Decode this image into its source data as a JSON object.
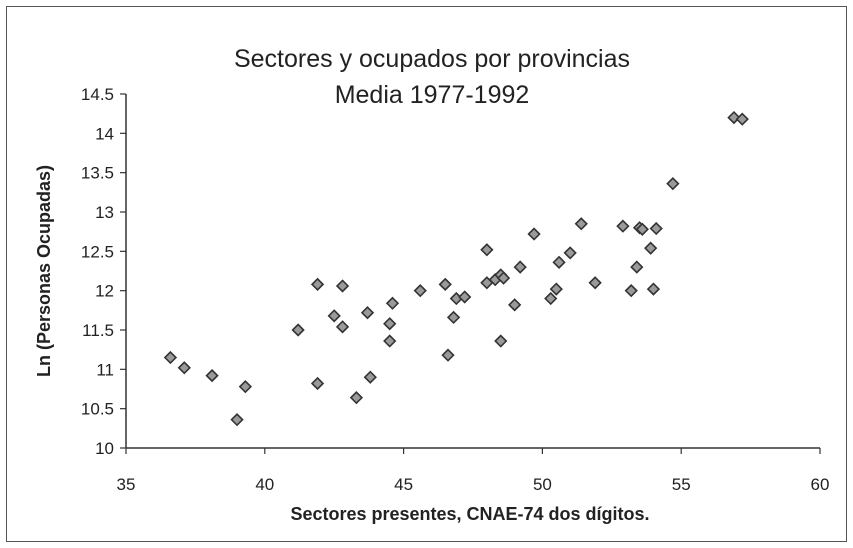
{
  "chart_data": {
    "type": "scatter",
    "title": "Sectores y ocupados por provincias",
    "subtitle": "Media 1977-1992",
    "xlabel": "Sectores presentes, CNAE-74 dos dígitos.",
    "ylabel": "Ln (Personas Ocupadas)",
    "xlim": [
      35,
      60
    ],
    "ylim": [
      10,
      14.5
    ],
    "x_ticks": [
      "35",
      "40",
      "45",
      "50",
      "55",
      "60"
    ],
    "y_ticks": [
      "10",
      "10.5",
      "11",
      "11.5",
      "12",
      "12.5",
      "13",
      "13.5",
      "14",
      "14.5"
    ],
    "grid": false,
    "legend": "none",
    "marker_color": "#333333",
    "points": [
      {
        "x": 36.6,
        "y": 11.15
      },
      {
        "x": 37.1,
        "y": 11.02
      },
      {
        "x": 38.1,
        "y": 10.92
      },
      {
        "x": 39.0,
        "y": 10.36
      },
      {
        "x": 39.3,
        "y": 10.78
      },
      {
        "x": 41.2,
        "y": 11.5
      },
      {
        "x": 41.9,
        "y": 12.08
      },
      {
        "x": 41.9,
        "y": 10.82
      },
      {
        "x": 42.5,
        "y": 11.68
      },
      {
        "x": 42.8,
        "y": 11.54
      },
      {
        "x": 42.8,
        "y": 12.06
      },
      {
        "x": 43.3,
        "y": 10.64
      },
      {
        "x": 43.7,
        "y": 11.72
      },
      {
        "x": 43.8,
        "y": 10.9
      },
      {
        "x": 44.5,
        "y": 11.58
      },
      {
        "x": 44.5,
        "y": 11.36
      },
      {
        "x": 44.6,
        "y": 11.84
      },
      {
        "x": 45.6,
        "y": 12.0
      },
      {
        "x": 46.5,
        "y": 12.08
      },
      {
        "x": 46.6,
        "y": 11.18
      },
      {
        "x": 46.8,
        "y": 11.66
      },
      {
        "x": 46.9,
        "y": 11.9
      },
      {
        "x": 47.2,
        "y": 11.92
      },
      {
        "x": 48.0,
        "y": 12.52
      },
      {
        "x": 48.0,
        "y": 12.1
      },
      {
        "x": 48.3,
        "y": 12.14
      },
      {
        "x": 48.5,
        "y": 12.2
      },
      {
        "x": 48.6,
        "y": 12.16
      },
      {
        "x": 48.5,
        "y": 11.36
      },
      {
        "x": 49.0,
        "y": 11.82
      },
      {
        "x": 49.2,
        "y": 12.3
      },
      {
        "x": 49.7,
        "y": 12.72
      },
      {
        "x": 50.3,
        "y": 11.9
      },
      {
        "x": 50.5,
        "y": 12.02
      },
      {
        "x": 50.6,
        "y": 12.36
      },
      {
        "x": 51.0,
        "y": 12.48
      },
      {
        "x": 51.4,
        "y": 12.85
      },
      {
        "x": 51.9,
        "y": 12.1
      },
      {
        "x": 52.9,
        "y": 12.82
      },
      {
        "x": 53.2,
        "y": 12.0
      },
      {
        "x": 53.4,
        "y": 12.3
      },
      {
        "x": 53.5,
        "y": 12.8
      },
      {
        "x": 53.6,
        "y": 12.78
      },
      {
        "x": 53.9,
        "y": 12.54
      },
      {
        "x": 54.0,
        "y": 12.02
      },
      {
        "x": 54.1,
        "y": 12.79
      },
      {
        "x": 54.7,
        "y": 13.36
      },
      {
        "x": 56.9,
        "y": 14.2
      },
      {
        "x": 57.2,
        "y": 14.18
      }
    ]
  }
}
